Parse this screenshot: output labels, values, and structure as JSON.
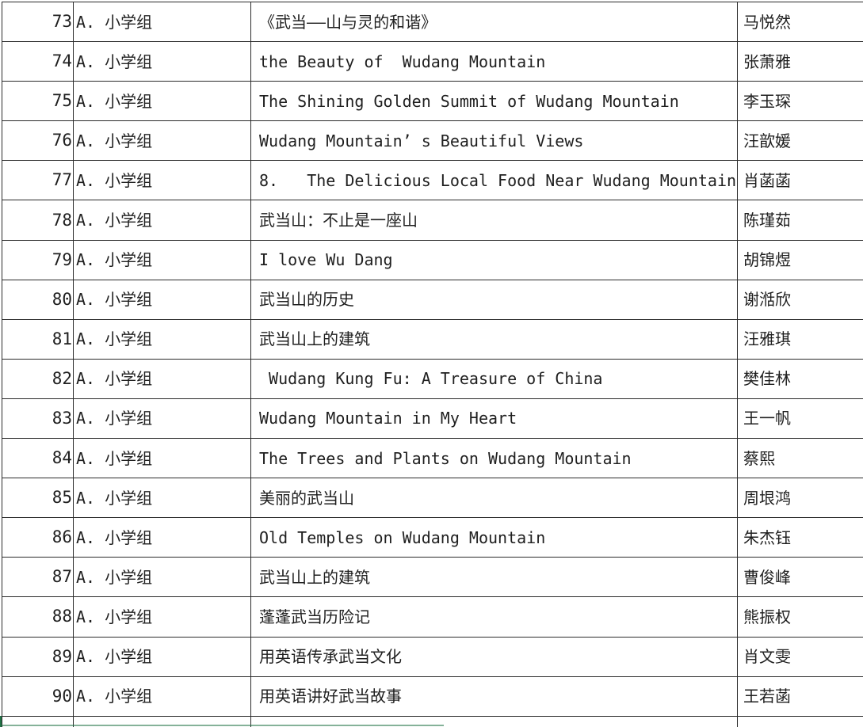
{
  "table": {
    "columns": [
      "number",
      "group",
      "title",
      "author"
    ],
    "rows": [
      {
        "number": "73",
        "group": "A. 小学组",
        "title": "《武当——山与灵的和谐》",
        "author": "马悦然"
      },
      {
        "number": "74",
        "group": "A. 小学组",
        "title": "the Beauty of  Wudang Mountain",
        "author": "张萧雅"
      },
      {
        "number": "75",
        "group": "A. 小学组",
        "title": "The Shining Golden Summit of Wudang Mountain",
        "author": "李玉琛"
      },
      {
        "number": "76",
        "group": "A. 小学组",
        "title": "Wudang Mountain’ s Beautiful Views",
        "author": "汪歆媛"
      },
      {
        "number": "77",
        "group": "A. 小学组",
        "title": "8.   The Delicious Local Food Near Wudang Mountain",
        "author": "肖菡菡"
      },
      {
        "number": "78",
        "group": "A. 小学组",
        "title": "武当山：不止是一座山",
        "author": "陈瑾茹"
      },
      {
        "number": "79",
        "group": "A. 小学组",
        "title": "I love Wu Dang",
        "author": "胡锦煜"
      },
      {
        "number": "80",
        "group": "A. 小学组",
        "title": "武当山的历史",
        "author": "谢湉欣"
      },
      {
        "number": "81",
        "group": "A. 小学组",
        "title": "武当山上的建筑",
        "author": "汪雅琪"
      },
      {
        "number": "82",
        "group": "A. 小学组",
        "title": " Wudang Kung Fu: A Treasure of China",
        "author": "樊佳林"
      },
      {
        "number": "83",
        "group": "A. 小学组",
        "title": "Wudang Mountain in My Heart",
        "author": "王一帆"
      },
      {
        "number": "84",
        "group": "A. 小学组",
        "title": "The Trees and Plants on Wudang Mountain",
        "author": "蔡熙"
      },
      {
        "number": "85",
        "group": "A. 小学组",
        "title": "美丽的武当山",
        "author": "周垠鸿"
      },
      {
        "number": "86",
        "group": "A. 小学组",
        "title": "Old Temples on Wudang Mountain",
        "author": "朱杰钰"
      },
      {
        "number": "87",
        "group": "A. 小学组",
        "title": "武当山上的建筑",
        "author": "曹俊峰"
      },
      {
        "number": "88",
        "group": "A. 小学组",
        "title": "蓬蓬武当历险记",
        "author": "熊振权"
      },
      {
        "number": "89",
        "group": "A. 小学组",
        "title": "用英语传承武当文化",
        "author": "肖文雯"
      },
      {
        "number": "90",
        "group": "A. 小学组",
        "title": "用英语讲好武当故事",
        "author": "王若菡"
      }
    ]
  },
  "colors": {
    "background": "#ffffff",
    "border": "#2b2b2b",
    "text": "#1f1f1f",
    "accent_green": "#217346"
  }
}
